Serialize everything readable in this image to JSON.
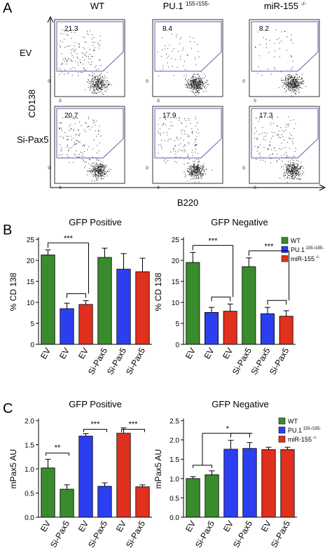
{
  "panel_letters": {
    "a": "A",
    "b": "B",
    "c": "C"
  },
  "panel_a": {
    "columns": [
      {
        "main": "WT",
        "sup": ""
      },
      {
        "main": "PU.1",
        "sup": "155-/155-"
      },
      {
        "main": "miR-155",
        "sup": "-/-"
      }
    ],
    "rows": [
      "EV",
      "Si-Pax5"
    ],
    "y_axis_label": "CD138",
    "x_axis_label": "B220",
    "percentages": [
      [
        "21.3",
        "8.4",
        "8.2"
      ],
      [
        "20.7",
        "17.9",
        "17.3"
      ]
    ],
    "tick_zero": "0",
    "gate_color": "#5060b0"
  },
  "legend": {
    "entries": [
      {
        "label": "WT",
        "sup": "",
        "color": "#3a8a2e"
      },
      {
        "label": "PU.1",
        "sup": "155-/155-",
        "color": "#2b3ff0"
      },
      {
        "label": "miR-155",
        "sup": "-/-",
        "color": "#e0301e"
      }
    ]
  },
  "chart_data": [
    {
      "type": "bar",
      "title": "GFP Positive",
      "ylabel": "% CD 138",
      "ylim": [
        0,
        25
      ],
      "yticks": [
        "0",
        "5",
        "10",
        "15",
        "20",
        "25"
      ],
      "categories": [
        "EV",
        "EV",
        "EV",
        "Si-Pax5",
        "Si-Pax5",
        "Si-Pax5"
      ],
      "values": [
        21.3,
        8.5,
        9.5,
        20.7,
        17.9,
        17.3
      ],
      "errors": [
        1.2,
        1.3,
        0.9,
        2.2,
        3.7,
        3.2
      ],
      "colors": [
        "#3a8a2e",
        "#2b3ff0",
        "#e0301e",
        "#3a8a2e",
        "#2b3ff0",
        "#e0301e"
      ],
      "annotations": [
        {
          "text": "***",
          "from": 0,
          "to": [
            1,
            2
          ]
        }
      ]
    },
    {
      "type": "bar",
      "title": "GFP Negative",
      "ylabel": "% CD 138",
      "ylim": [
        0,
        25
      ],
      "yticks": [
        "0",
        "5",
        "10",
        "15",
        "20",
        "25"
      ],
      "categories": [
        "EV",
        "EV",
        "EV",
        "Si-Pax5",
        "Si-Pax5",
        "Si-Pax5"
      ],
      "values": [
        19.5,
        7.6,
        7.9,
        18.5,
        7.3,
        6.7
      ],
      "errors": [
        2.4,
        1.2,
        1.7,
        2.1,
        1.5,
        1.3
      ],
      "colors": [
        "#3a8a2e",
        "#2b3ff0",
        "#e0301e",
        "#3a8a2e",
        "#2b3ff0",
        "#e0301e"
      ],
      "annotations": [
        {
          "text": "***",
          "from": 0,
          "to": [
            1,
            2
          ]
        },
        {
          "text": "***",
          "from": 3,
          "to": [
            4,
            5
          ]
        }
      ]
    },
    {
      "type": "bar",
      "title": "GFP Positive",
      "ylabel": "mPax5 AU",
      "ylim": [
        0,
        2.0
      ],
      "yticks": [
        "0.0",
        "0.5",
        "1.0",
        "1.5",
        "2.0"
      ],
      "categories": [
        "EV",
        "Si-Pax5",
        "EV",
        "Si-Pax5",
        "EV",
        "Si-Pax5"
      ],
      "values": [
        1.02,
        0.58,
        1.68,
        0.64,
        1.74,
        0.63
      ],
      "errors": [
        0.18,
        0.09,
        0.05,
        0.07,
        0.11,
        0.04
      ],
      "colors": [
        "#3a8a2e",
        "#3a8a2e",
        "#2b3ff0",
        "#2b3ff0",
        "#e0301e",
        "#e0301e"
      ],
      "brackets": [
        {
          "text": "**",
          "a": 0,
          "b": 1,
          "level": 1.33
        },
        {
          "text": "***",
          "a": 2,
          "b": 3,
          "level": 1.82
        },
        {
          "text": "***",
          "a": 4,
          "b": 5,
          "level": 1.82
        }
      ]
    },
    {
      "type": "bar",
      "title": "GFP Negative",
      "ylabel": "mPax5 AU",
      "ylim": [
        0,
        2.5
      ],
      "yticks": [
        "0.0",
        "0.5",
        "1.0",
        "1.5",
        "2.0",
        "2.5"
      ],
      "categories": [
        "EV",
        "Si-Pax5",
        "EV",
        "Si-Pax5",
        "EV",
        "Si-Pax5"
      ],
      "values": [
        1.0,
        1.1,
        1.76,
        1.78,
        1.75,
        1.75
      ],
      "errors": [
        0.05,
        0.1,
        0.23,
        0.15,
        0.06,
        0.06
      ],
      "colors": [
        "#3a8a2e",
        "#3a8a2e",
        "#2b3ff0",
        "#2b3ff0",
        "#e0301e",
        "#e0301e"
      ],
      "annotations": [
        {
          "text": "*",
          "from": [
            0,
            1
          ],
          "to": [
            2,
            3
          ]
        }
      ]
    }
  ]
}
